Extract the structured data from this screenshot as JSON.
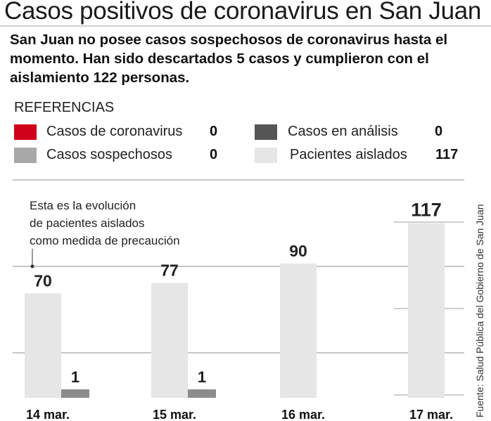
{
  "header": {
    "title": "Casos positivos de coronavirus en San Juan",
    "subtitle": "San Juan no posee casos sospechosos de coronavirus hasta el momento. Han sido descartados 5 casos y cumplieron con el aislamiento 122 personas."
  },
  "legend": {
    "heading": "REFERENCIAS",
    "items": [
      {
        "label": "Casos de coronavirus",
        "count": "0",
        "color": "#d0021b"
      },
      {
        "label": "Casos en análisis",
        "count": "0",
        "color": "#555555"
      },
      {
        "label": "Casos sospechosos",
        "count": "0",
        "color": "#a8a8a8"
      },
      {
        "label": "Pacientes aislados",
        "count": "117",
        "color": "#e6e6e6"
      }
    ]
  },
  "chart_data": {
    "type": "bar",
    "title": "Casos positivos de coronavirus en San Juan",
    "xlabel": "",
    "ylabel": "",
    "ylim": [
      0,
      130
    ],
    "grid": true,
    "categories": [
      "14 mar.",
      "15 mar.",
      "16 mar.",
      "17 mar."
    ],
    "series": [
      {
        "name": "Pacientes aislados",
        "color": "#e6e6e6",
        "values": [
          70,
          77,
          90,
          117
        ]
      },
      {
        "name": "Casos sospechosos",
        "color": "#8c8c8c",
        "values": [
          1,
          1,
          0,
          0
        ]
      }
    ],
    "annotation": "Esta es la evolución de pacientes aislados como medida de precaución"
  },
  "source": "Fuente: Salud Pública del Gobierno de San Juan"
}
